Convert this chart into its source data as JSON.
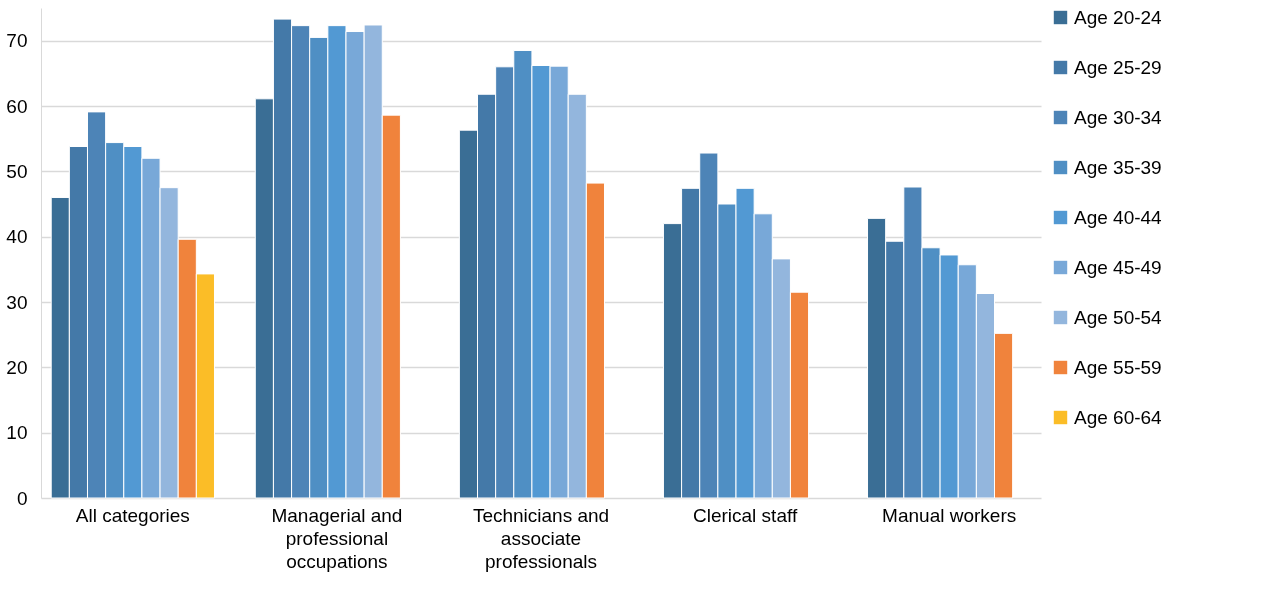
{
  "chart_data": {
    "type": "bar",
    "categories": [
      "All categories",
      "Managerial and professional occupations",
      "Technicians and associate professionals",
      "Clerical staff",
      "Manual workers"
    ],
    "series": [
      {
        "name": "Age 20-24",
        "color": "#3a6e95",
        "values": [
          46.0,
          61.1,
          56.3,
          42.0,
          42.8
        ]
      },
      {
        "name": "Age 25-29",
        "color": "#4479a8",
        "values": [
          53.8,
          73.3,
          61.8,
          47.4,
          39.3
        ]
      },
      {
        "name": "Age 30-34",
        "color": "#4d84b7",
        "values": [
          59.1,
          72.3,
          66.0,
          52.8,
          47.6
        ]
      },
      {
        "name": "Age 35-39",
        "color": "#4f8fc4",
        "values": [
          54.4,
          70.5,
          68.5,
          45.0,
          38.3
        ]
      },
      {
        "name": "Age 40-44",
        "color": "#5299d3",
        "values": [
          53.8,
          72.3,
          66.2,
          47.4,
          37.2
        ]
      },
      {
        "name": "Age 45-49",
        "color": "#78a8d8",
        "values": [
          52.0,
          71.4,
          66.1,
          43.5,
          35.7
        ]
      },
      {
        "name": "Age 50-54",
        "color": "#93b6dd",
        "values": [
          47.5,
          72.4,
          61.8,
          36.6,
          31.3
        ]
      },
      {
        "name": "Age 55-59",
        "color": "#f0833c",
        "values": [
          39.6,
          58.6,
          48.2,
          31.5,
          25.2
        ]
      },
      {
        "name": "Age 60-64",
        "color": "#fbbd27",
        "values": [
          34.3,
          null,
          null,
          null,
          null
        ]
      }
    ],
    "ylim": [
      0,
      75
    ],
    "yticks": [
      0,
      10,
      20,
      30,
      40,
      50,
      60,
      70
    ],
    "grid": "y",
    "legend": "right"
  }
}
